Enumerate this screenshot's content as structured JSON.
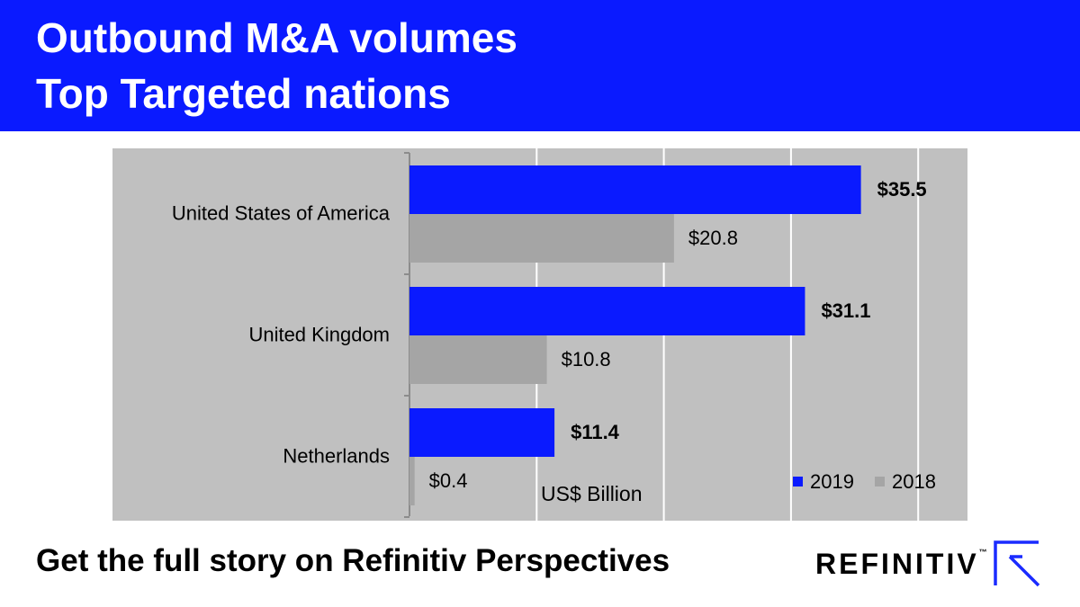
{
  "header": {
    "title_line1": "Outbound M&A volumes",
    "title_line2": "Top Targeted nations"
  },
  "colors": {
    "header_bg": "#0a1aff",
    "series_2019": "#0a1aff",
    "series_2018": "#a5a5a5",
    "plot_bg": "#c0c0c0"
  },
  "chart_data": {
    "type": "bar",
    "orientation": "horizontal",
    "title": "Outbound M&A volumes Top Targeted nations",
    "categories": [
      "United States of America",
      "United Kingdom",
      "Netherlands"
    ],
    "series": [
      {
        "name": "2019",
        "values": [
          35.5,
          31.1,
          11.4
        ],
        "labels": [
          "$35.5",
          "$31.1",
          "$11.4"
        ]
      },
      {
        "name": "2018",
        "values": [
          20.8,
          10.8,
          0.4
        ],
        "labels": [
          "$20.8",
          "$10.8",
          "$0.4"
        ]
      }
    ],
    "unit_label": "US$ Billion",
    "xlim": [
      0,
      40
    ],
    "grid": true,
    "legend": "bottom-right",
    "xlabel": "",
    "ylabel": ""
  },
  "footer": {
    "cta": "Get the full story on Refinitiv Perspectives",
    "brand": "REFINITIV",
    "brand_tm": "™"
  }
}
